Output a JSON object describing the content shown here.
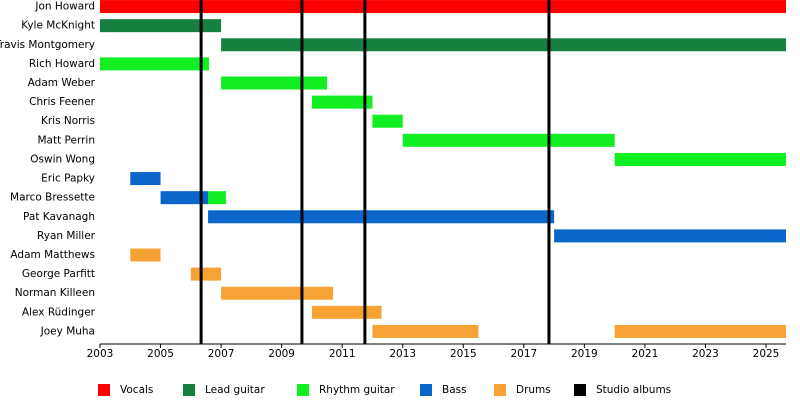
{
  "chart_data": {
    "type": "timeline",
    "categories": [
      "Jon Howard",
      "Kyle McKnight",
      "Travis Montgomery",
      "Rich Howard",
      "Adam Weber",
      "Chris Feener",
      "Kris Norris",
      "Matt Perrin",
      "Oswin Wong",
      "Eric Papky",
      "Marco Bressette",
      "Pat Kavanagh",
      "Ryan Miller",
      "Adam Matthews",
      "George Parfitt",
      "Norman Killeen",
      "Alex Rüdinger",
      "Joey Muha"
    ],
    "series": [
      {
        "name": "Vocals",
        "color": "#ff0000",
        "periods": [
          {
            "category": 0,
            "start": 2003,
            "end": 2025.66
          }
        ]
      },
      {
        "name": "Lead guitar",
        "color": "#15803f",
        "periods": [
          {
            "category": 1,
            "start": 2003,
            "end": 2007
          },
          {
            "category": 2,
            "start": 2007,
            "end": 2025.66
          }
        ]
      },
      {
        "name": "Rhythm guitar",
        "color": "#11ee22",
        "periods": [
          {
            "category": 3,
            "start": 2003,
            "end": 2006.6
          },
          {
            "category": 4,
            "start": 2007,
            "end": 2010.5
          },
          {
            "category": 5,
            "start": 2010,
            "end": 2012
          },
          {
            "category": 6,
            "start": 2012,
            "end": 2013
          },
          {
            "category": 7,
            "start": 2013,
            "end": 2020
          },
          {
            "category": 8,
            "start": 2020,
            "end": 2025.66
          },
          {
            "category": 10,
            "start": 2006.57,
            "end": 2007.16
          }
        ]
      },
      {
        "name": "Bass",
        "color": "#0a66c8",
        "periods": [
          {
            "category": 9,
            "start": 2004,
            "end": 2005
          },
          {
            "category": 10,
            "start": 2005,
            "end": 2006.57
          },
          {
            "category": 11,
            "start": 2006.57,
            "end": 2018
          },
          {
            "category": 12,
            "start": 2018,
            "end": 2025.66
          }
        ]
      },
      {
        "name": "Drums",
        "color": "#f7a234",
        "periods": [
          {
            "category": 13,
            "start": 2004,
            "end": 2005
          },
          {
            "category": 14,
            "start": 2006,
            "end": 2007
          },
          {
            "category": 15,
            "start": 2007,
            "end": 2010.7
          },
          {
            "category": 16,
            "start": 2010,
            "end": 2012.3
          },
          {
            "category": 17,
            "start": 2012,
            "end": 2015.5
          },
          {
            "category": 17,
            "start": 2020,
            "end": 2025.66
          }
        ]
      }
    ],
    "markers": {
      "name": "Studio albums",
      "color": "#000000",
      "values": [
        2006.34,
        2009.67,
        2011.75,
        2017.83
      ]
    },
    "xlim": [
      2003,
      2025.66
    ],
    "xticks": [
      2003,
      2005,
      2007,
      2009,
      2011,
      2013,
      2015,
      2017,
      2019,
      2021,
      2023,
      2025
    ]
  }
}
